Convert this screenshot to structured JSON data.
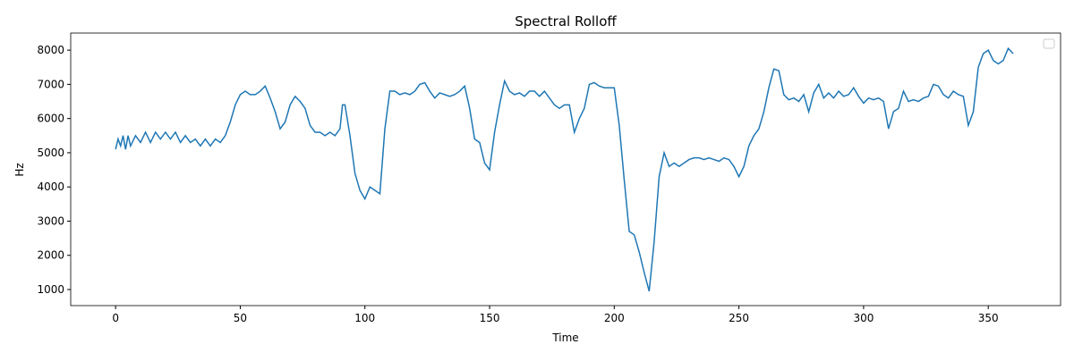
{
  "chart_data": {
    "type": "line",
    "title": "Spectral Rolloff",
    "x_label": "Time",
    "y_label": "Hz",
    "x": [
      0,
      1,
      2,
      3,
      4,
      5,
      6,
      8,
      10,
      12,
      14,
      16,
      18,
      20,
      22,
      24,
      26,
      28,
      30,
      32,
      34,
      36,
      38,
      40,
      42,
      44,
      46,
      48,
      50,
      52,
      54,
      56,
      58,
      60,
      62,
      64,
      66,
      68,
      70,
      72,
      74,
      76,
      78,
      80,
      82,
      84,
      86,
      88,
      90,
      91,
      92,
      94,
      96,
      98,
      100,
      102,
      104,
      106,
      108,
      110,
      112,
      114,
      116,
      118,
      120,
      122,
      124,
      126,
      128,
      130,
      132,
      134,
      136,
      138,
      140,
      142,
      144,
      146,
      148,
      150,
      152,
      154,
      156,
      158,
      160,
      162,
      164,
      166,
      168,
      170,
      172,
      174,
      176,
      178,
      180,
      182,
      184,
      186,
      188,
      190,
      192,
      194,
      196,
      198,
      200,
      202,
      204,
      206,
      208,
      210,
      212,
      214,
      216,
      218,
      220,
      222,
      224,
      226,
      228,
      230,
      232,
      234,
      236,
      238,
      240,
      242,
      244,
      246,
      248,
      250,
      252,
      254,
      256,
      258,
      260,
      262,
      264,
      266,
      268,
      270,
      272,
      274,
      276,
      278,
      280,
      282,
      284,
      286,
      288,
      290,
      292,
      294,
      296,
      298,
      300,
      302,
      304,
      306,
      308,
      310,
      312,
      314,
      316,
      318,
      320,
      322,
      324,
      326,
      328,
      330,
      332,
      334,
      336,
      338,
      340,
      342,
      344,
      346,
      348,
      350,
      352,
      354,
      356,
      358,
      360
    ],
    "values": [
      5100,
      5400,
      5200,
      5500,
      5100,
      5500,
      5200,
      5500,
      5300,
      5600,
      5300,
      5600,
      5400,
      5600,
      5400,
      5600,
      5300,
      5500,
      5300,
      5400,
      5200,
      5400,
      5200,
      5400,
      5300,
      5500,
      5900,
      6400,
      6700,
      6800,
      6700,
      6700,
      6800,
      6950,
      6600,
      6200,
      5700,
      5900,
      6400,
      6650,
      6500,
      6300,
      5800,
      5600,
      5600,
      5500,
      5600,
      5500,
      5700,
      6400,
      6400,
      5500,
      4400,
      3900,
      3650,
      4000,
      3900,
      3800,
      5700,
      6800,
      6800,
      6700,
      6750,
      6700,
      6800,
      7000,
      7050,
      6800,
      6600,
      6750,
      6700,
      6650,
      6700,
      6800,
      6950,
      6300,
      5400,
      5300,
      4700,
      4500,
      5600,
      6400,
      7100,
      6800,
      6700,
      6750,
      6650,
      6800,
      6800,
      6650,
      6800,
      6600,
      6400,
      6300,
      6400,
      6400,
      5600,
      6000,
      6300,
      7000,
      7050,
      6950,
      6900,
      6900,
      6900,
      5800,
      4200,
      2700,
      2600,
      2100,
      1500,
      950,
      2400,
      4300,
      5000,
      4600,
      4700,
      4600,
      4700,
      4800,
      4850,
      4850,
      4800,
      4850,
      4800,
      4750,
      4850,
      4800,
      4600,
      4300,
      4600,
      5200,
      5500,
      5700,
      6200,
      6900,
      7450,
      7400,
      6700,
      6550,
      6600,
      6500,
      6700,
      6200,
      6750,
      7000,
      6600,
      6750,
      6600,
      6800,
      6650,
      6700,
      6900,
      6650,
      6450,
      6600,
      6550,
      6600,
      6500,
      5700,
      6200,
      6300,
      6800,
      6500,
      6550,
      6500,
      6600,
      6650,
      7000,
      6950,
      6700,
      6600,
      6800,
      6700,
      6650,
      5800,
      6200,
      7500,
      7900,
      8000,
      7700,
      7600,
      7700,
      8050,
      7900
    ],
    "color": "#1f77b4",
    "xlim": [
      -18,
      379
    ],
    "xticks": [
      0,
      50,
      100,
      150,
      200,
      250,
      300,
      350
    ],
    "ylim": [
      530,
      8500
    ],
    "yticks": [
      1000,
      2000,
      3000,
      4000,
      5000,
      6000,
      7000,
      8000
    ]
  }
}
